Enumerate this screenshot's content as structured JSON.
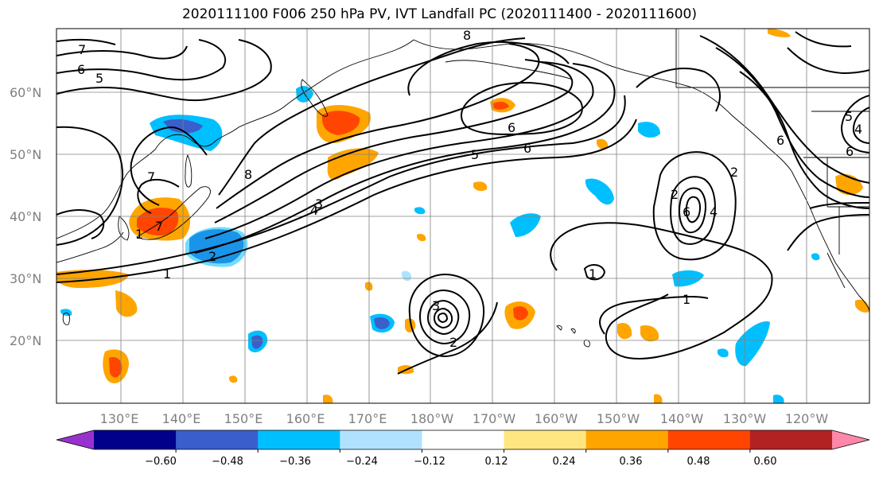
{
  "title": "2020111100 F006 250 hPa PV, IVT Landfall PC (2020111400 - 2020111600)",
  "map": {
    "lat_ticks": [
      "20°N",
      "30°N",
      "40°N",
      "50°N",
      "60°N"
    ],
    "lon_ticks": [
      "130°E",
      "140°E",
      "150°E",
      "160°E",
      "170°E",
      "180°W",
      "170°W",
      "160°W",
      "150°W",
      "140°W",
      "130°W",
      "120°W"
    ],
    "contour_labels": [
      "7",
      "6",
      "5",
      "8",
      "7",
      "4",
      "3",
      "2",
      "1",
      "5",
      "6",
      "8",
      "6",
      "3",
      "2",
      "2",
      "1",
      "6",
      "2",
      "4",
      "1",
      "6",
      "5",
      "4",
      "6",
      "7",
      "1"
    ]
  },
  "colorbar": {
    "ticks": [
      "−0.60",
      "−0.48",
      "−0.36",
      "−0.24",
      "−0.12",
      "0.12",
      "0.24",
      "0.36",
      "0.48",
      "0.60"
    ],
    "colors": [
      "#9932cc",
      "#00008b",
      "#3a5fcd",
      "#00bfff",
      "#b0e2ff",
      "#ffffff",
      "#ffe680",
      "#ffa500",
      "#ff4500",
      "#b22222",
      "#ff88aa"
    ]
  }
}
